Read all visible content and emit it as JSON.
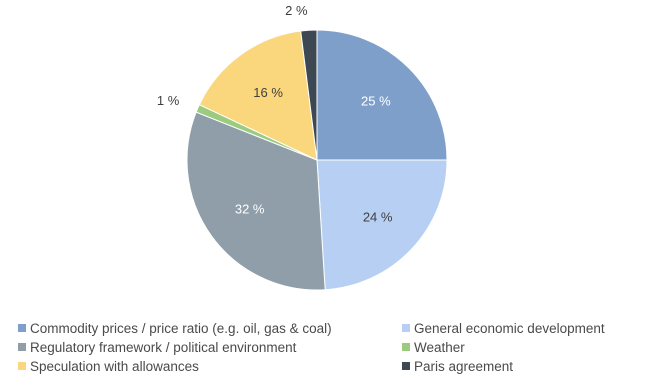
{
  "chart_data": {
    "type": "pie",
    "labels": [
      "Commodity prices / price ratio (e.g. oil, gas & coal)",
      "General economic development",
      "Regulatory framework / political environment",
      "Weather",
      "Speculation with allowances",
      "Paris agreement"
    ],
    "values": [
      25,
      24,
      32,
      1,
      16,
      2
    ],
    "value_labels": [
      "25 %",
      "24 %",
      "32 %",
      "1 %",
      "16 %",
      "2 %"
    ],
    "colors": [
      "#7f9fcb",
      "#b6cff3",
      "#8f9ea8",
      "#9acb7e",
      "#fad67d",
      "#3e4853"
    ],
    "label_colors": [
      "#ffffff",
      "#404040",
      "#ffffff",
      "#404040",
      "#404040",
      "#404040"
    ],
    "legend_position": "bottom",
    "title": "",
    "start_angle": "12 o'clock",
    "direction": "clockwise"
  }
}
